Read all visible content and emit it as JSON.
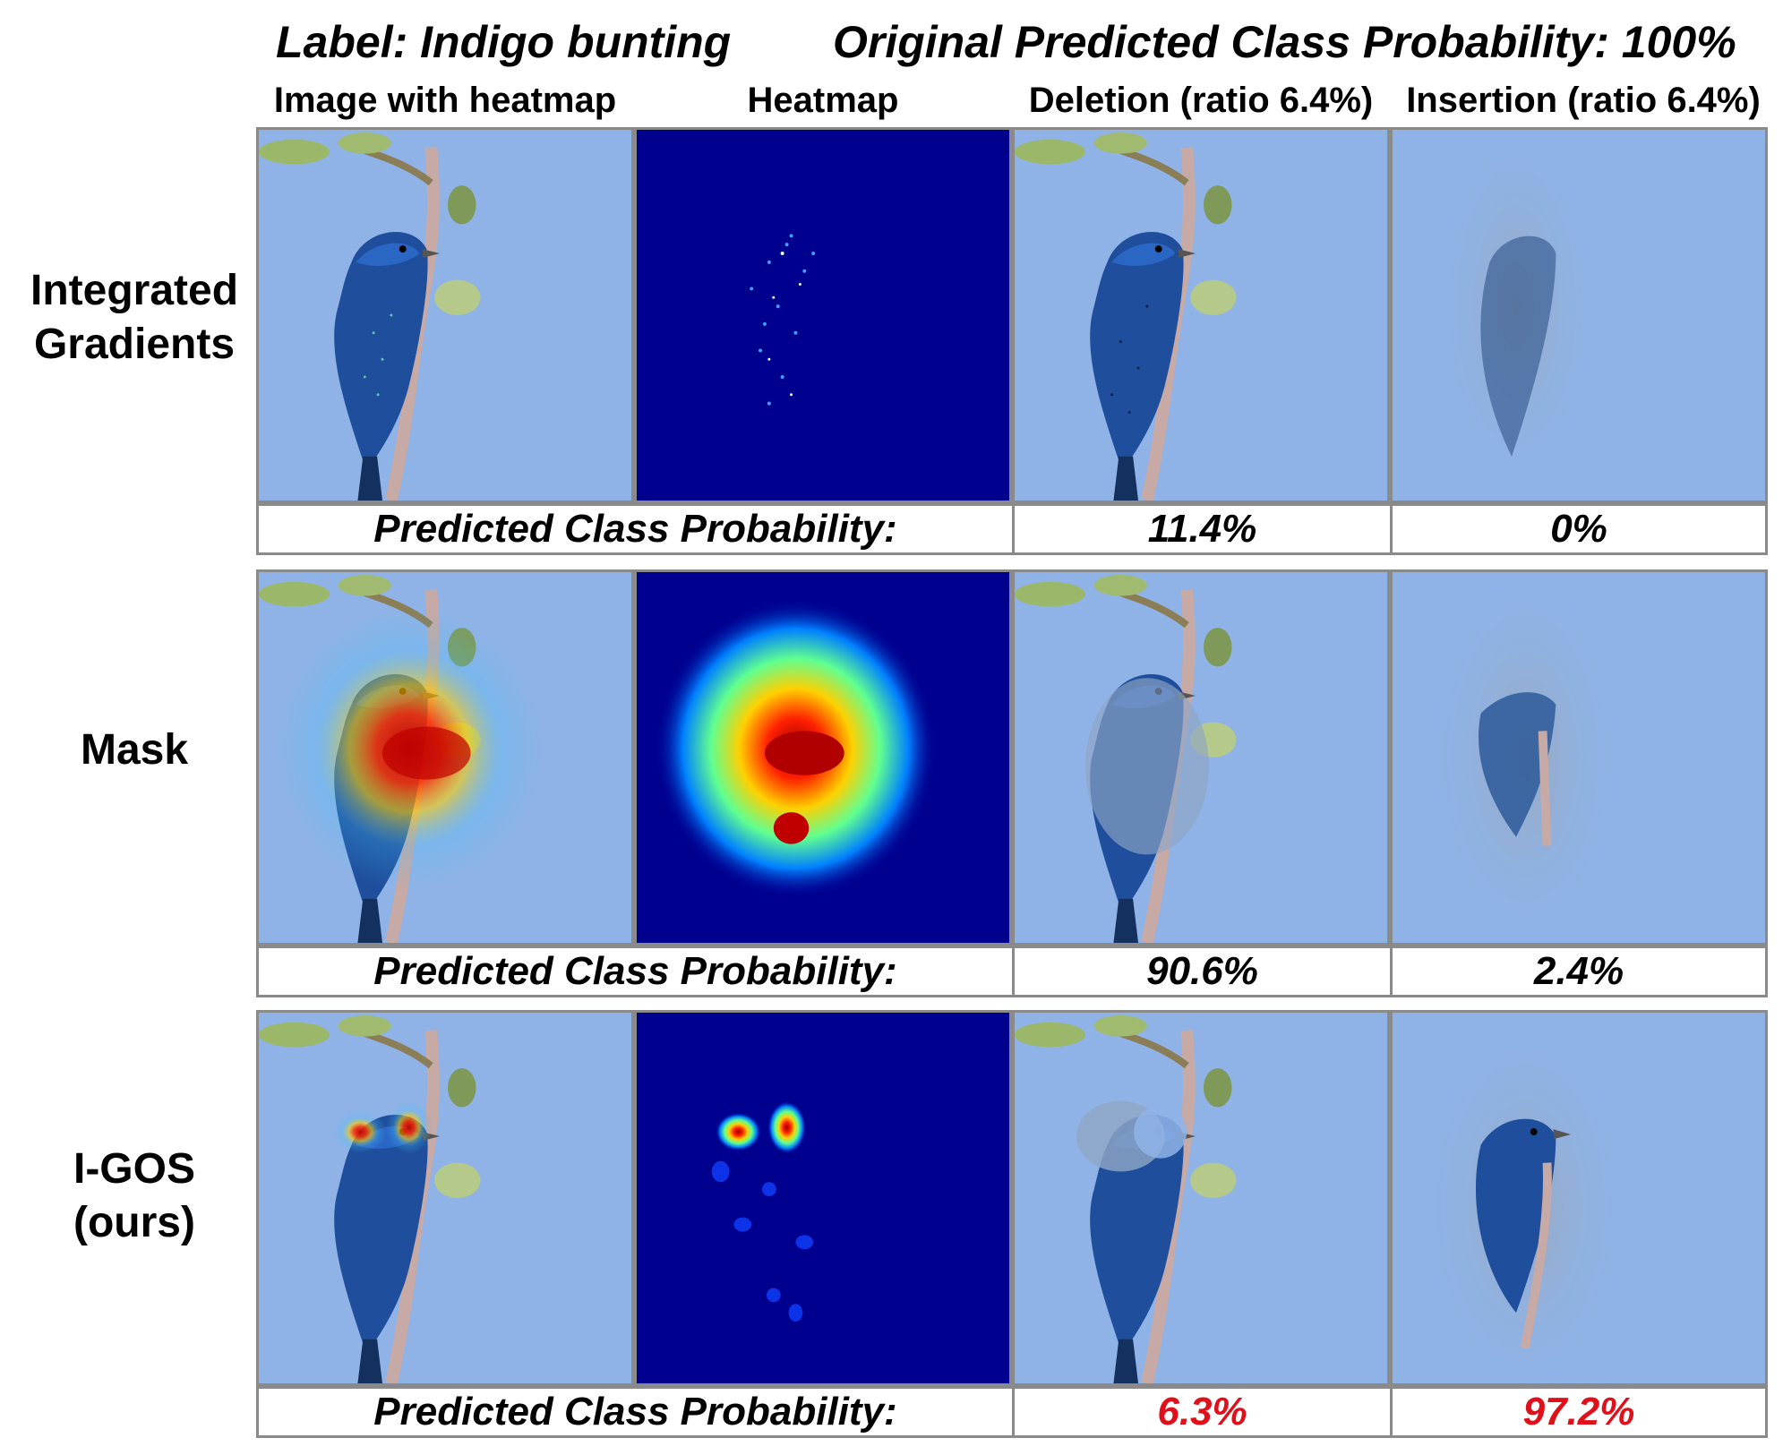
{
  "header": {
    "label_text": "Label: Indigo bunting",
    "original_prob_text": "Original Predicted Class Probability: 100%"
  },
  "columns": [
    "Image with heatmap",
    "Heatmap",
    "Deletion (ratio 6.4%)",
    "Insertion (ratio 6.4%)"
  ],
  "rows": [
    {
      "label_lines": [
        "Integrated",
        "Gradients"
      ],
      "prob_label": "Predicted Class Probability:",
      "deletion_prob": "11.4%",
      "insertion_prob": "0%",
      "highlight": false
    },
    {
      "label_lines": [
        "Mask"
      ],
      "prob_label": "Predicted Class Probability:",
      "deletion_prob": "90.6%",
      "insertion_prob": "2.4%",
      "highlight": false
    },
    {
      "label_lines": [
        "I-GOS",
        "(ours)"
      ],
      "prob_label": "Predicted Class Probability:",
      "deletion_prob": "6.3%",
      "insertion_prob": "97.2%",
      "highlight": true
    }
  ],
  "colors": {
    "sky": "#8fb3e6",
    "heatmap_bg": "#00008f",
    "highlight_text": "#e0101a",
    "border": "#8a8a8a"
  }
}
